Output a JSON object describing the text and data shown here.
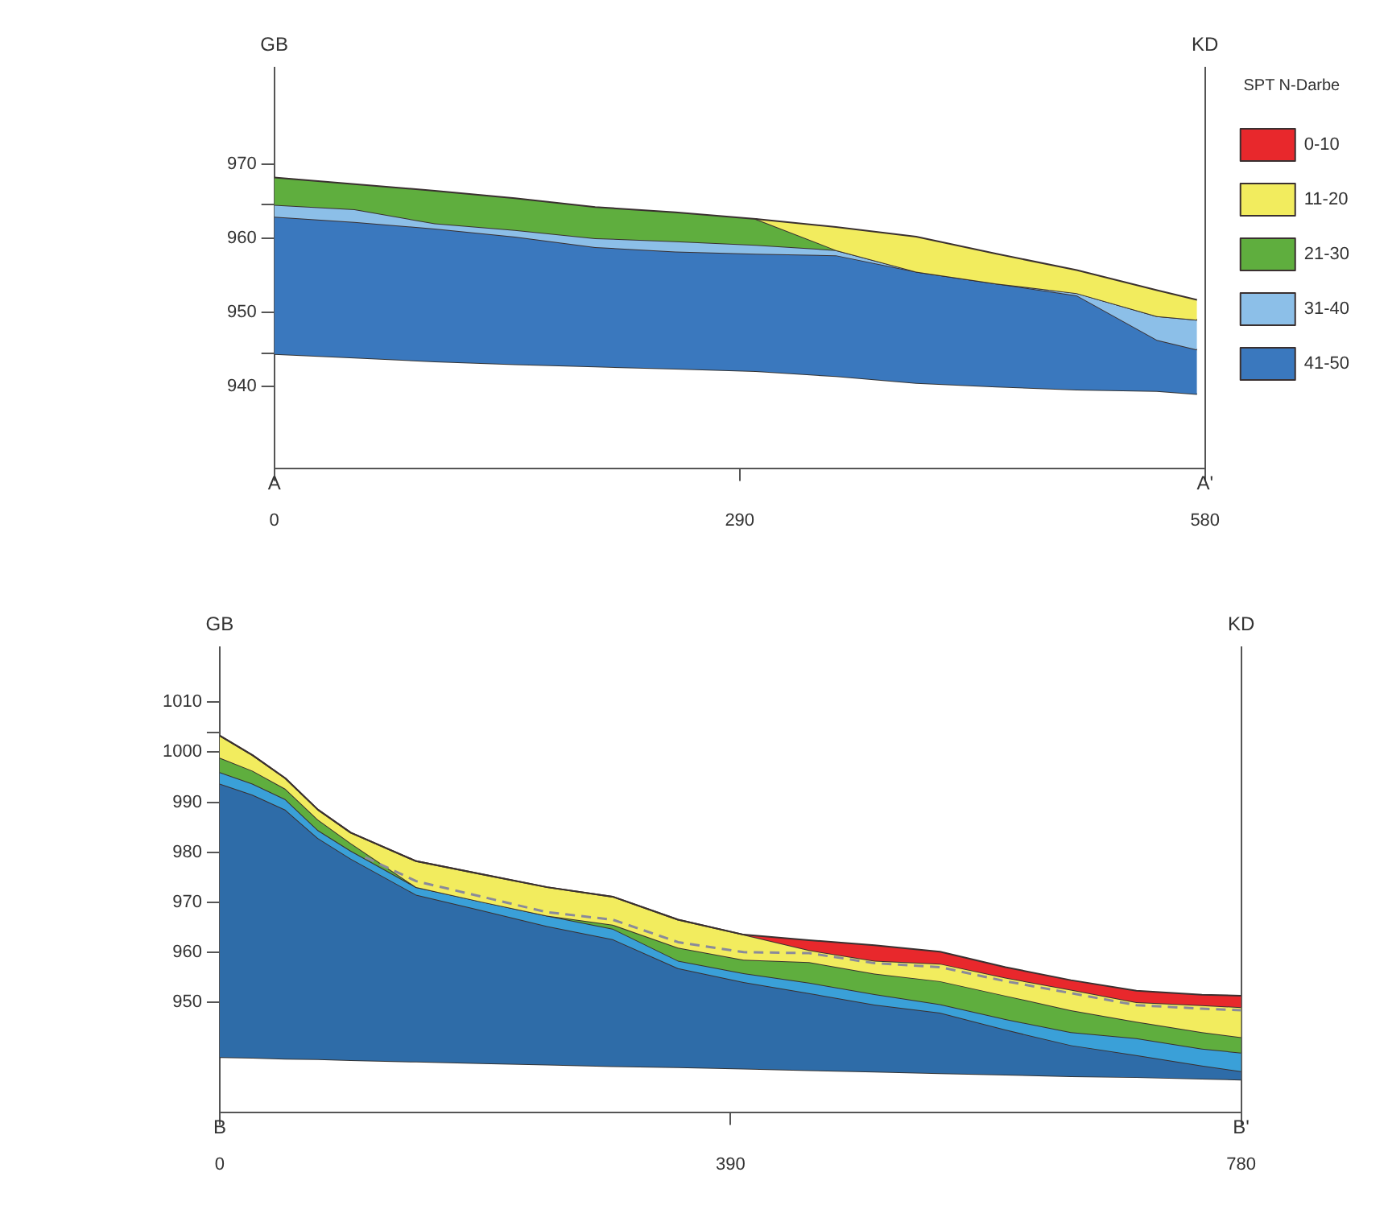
{
  "chart_data": [
    {
      "type": "area",
      "legend": "right",
      "legend_title": "SPT N-Darbe",
      "annotations": [
        "GB",
        "KD",
        "A",
        "A'"
      ],
      "x": [
        0,
        50,
        100,
        150,
        200,
        250,
        300,
        350,
        400,
        450,
        500,
        550,
        575
      ],
      "xlim": [
        0,
        580
      ],
      "xticks": [
        0,
        290,
        580
      ],
      "ylim": [
        929,
        983
      ],
      "yticks": [
        940,
        {
          "value": 944.5,
          "label": null
        },
        950,
        960,
        {
          "value": 964.5,
          "label": null
        },
        970
      ],
      "series": [
        {
          "type": "line",
          "color": "#333333",
          "values": [
            944.4,
            943.9,
            943.4,
            943.0,
            942.7,
            942.4,
            942.1,
            941.4,
            940.5,
            940.0,
            939.6,
            939.4,
            939.0
          ]
        },
        {
          "name": "41-50",
          "color": "#3a78be",
          "values": [
            962.9,
            962.2,
            961.3,
            960.2,
            958.8,
            958.2,
            957.9,
            957.7,
            955.5,
            953.9,
            952.3,
            946.3,
            945.0
          ]
        },
        {
          "name": "31-40",
          "color": "#8cbfe8",
          "values": [
            964.5,
            963.9,
            962.0,
            961.1,
            960.0,
            959.6,
            959.1,
            958.4,
            955.5,
            953.9,
            952.6,
            949.5,
            949.0
          ]
        },
        {
          "name": "21-30",
          "color": "#5fae3e",
          "values": [
            968.2,
            967.3,
            966.4,
            965.4,
            964.2,
            963.5,
            962.6,
            958.4,
            955.5,
            953.9,
            952.6,
            949.5,
            949.0
          ]
        },
        {
          "name": "11-20",
          "color": "#f2ec5e",
          "values": [
            null,
            null,
            null,
            null,
            null,
            null,
            962.6,
            961.5,
            960.2,
            957.9,
            955.7,
            953.0,
            951.7
          ]
        },
        {
          "name": "0-10",
          "color": "#e8282c",
          "values": [
            null,
            null,
            null,
            null,
            null,
            null,
            null,
            null,
            null,
            null,
            null,
            null,
            null
          ]
        }
      ]
    },
    {
      "type": "area",
      "annotations": [
        "GB",
        "KD",
        "B",
        "B'"
      ],
      "x": [
        0,
        25,
        50,
        75,
        100,
        150,
        200,
        250,
        300,
        350,
        400,
        450,
        500,
        550,
        600,
        650,
        700,
        750,
        780
      ],
      "xlim": [
        0,
        780
      ],
      "xticks": [
        0,
        390,
        780
      ],
      "ylim": [
        928,
        1021
      ],
      "yticks": [
        950,
        960,
        970,
        980,
        990,
        1000,
        {
          "value": 1004,
          "label": null
        },
        1010
      ],
      "series": [
        {
          "type": "line",
          "color": "#333333",
          "values": [
            939.0,
            938.9,
            938.7,
            938.6,
            938.4,
            938.1,
            937.8,
            937.5,
            937.2,
            937.0,
            936.7,
            936.4,
            936.1,
            935.8,
            935.5,
            935.2,
            935.0,
            934.7,
            934.5
          ]
        },
        {
          "color": "#2e6ca8",
          "values": [
            993.7,
            991.5,
            988.5,
            982.8,
            978.7,
            971.5,
            968.4,
            965.2,
            962.6,
            956.8,
            954.0,
            951.8,
            949.5,
            947.9,
            944.5,
            941.4,
            939.4,
            937.3,
            936.2
          ]
        },
        {
          "color": "#3aa0d8",
          "values": [
            996.0,
            993.7,
            990.6,
            984.4,
            980.3,
            973.0,
            970.1,
            967.3,
            964.7,
            958.3,
            955.8,
            953.9,
            951.6,
            949.6,
            946.6,
            944.0,
            942.8,
            940.7,
            939.9
          ]
        },
        {
          "color": "#5fae3e",
          "values": [
            998.9,
            996.3,
            992.7,
            986.5,
            981.8,
            973.0,
            970.1,
            967.3,
            965.5,
            960.9,
            958.5,
            958.0,
            955.7,
            954.2,
            951.3,
            948.4,
            946.1,
            944.0,
            943.0
          ]
        },
        {
          "color": "#f2ec5e",
          "values": [
            1003.3,
            999.4,
            994.8,
            988.5,
            983.9,
            978.2,
            975.6,
            973.0,
            971.1,
            966.5,
            963.5,
            960.4,
            958.3,
            957.7,
            954.9,
            952.5,
            950.0,
            949.4,
            949.0
          ]
        },
        {
          "color": "#e8282c",
          "values": [
            1003.3,
            999.4,
            994.8,
            988.5,
            983.9,
            978.2,
            975.6,
            973.0,
            971.1,
            966.5,
            963.5,
            962.4,
            961.4,
            960.1,
            957.0,
            954.4,
            952.3,
            951.5,
            951.3
          ]
        },
        {
          "type": "line",
          "line_style": "dashed",
          "color": "#8a8a9a",
          "x": [
            111,
            150,
            200,
            250,
            300,
            350,
            400,
            450,
            500,
            550,
            600,
            650,
            700,
            750,
            780
          ],
          "values": [
            979.0,
            974.2,
            971.1,
            968.0,
            966.5,
            962.0,
            960.0,
            959.8,
            957.8,
            957.0,
            954.2,
            951.8,
            949.4,
            948.7,
            948.4
          ]
        }
      ]
    }
  ]
}
